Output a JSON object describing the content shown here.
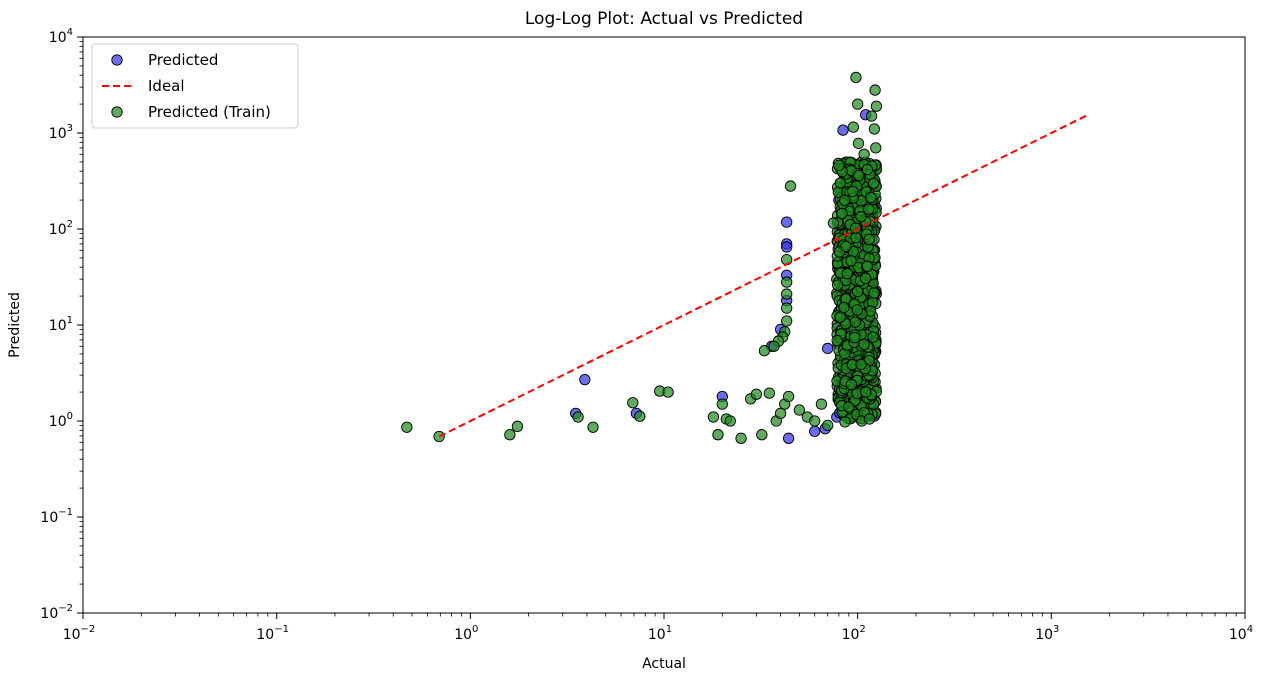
{
  "chart_data": {
    "type": "scatter",
    "title": "Log-Log Plot: Actual vs Predicted",
    "xlabel": "Actual",
    "ylabel": "Predicted",
    "xscale": "log",
    "yscale": "log",
    "xlim": [
      0.01,
      10000
    ],
    "ylim": [
      0.01,
      10000
    ],
    "xticks": [
      {
        "base": "10",
        "exp": "−2",
        "value": 0.01
      },
      {
        "base": "10",
        "exp": "−1",
        "value": 0.1
      },
      {
        "base": "10",
        "exp": "0",
        "value": 1
      },
      {
        "base": "10",
        "exp": "1",
        "value": 10
      },
      {
        "base": "10",
        "exp": "2",
        "value": 100
      },
      {
        "base": "10",
        "exp": "3",
        "value": 1000
      },
      {
        "base": "10",
        "exp": "4",
        "value": 10000
      }
    ],
    "yticks": [
      {
        "base": "10",
        "exp": "−2",
        "value": 0.01
      },
      {
        "base": "10",
        "exp": "−1",
        "value": 0.1
      },
      {
        "base": "10",
        "exp": "0",
        "value": 1
      },
      {
        "base": "10",
        "exp": "1",
        "value": 10
      },
      {
        "base": "10",
        "exp": "2",
        "value": 100
      },
      {
        "base": "10",
        "exp": "3",
        "value": 1000
      },
      {
        "base": "10",
        "exp": "4",
        "value": 10000
      }
    ],
    "grid": false,
    "legend_position": "top-left",
    "series": [
      {
        "name": "Predicted",
        "kind": "scatter",
        "color": "#3333e6",
        "points": [
          [
            3.9,
            2.7
          ],
          [
            3.5,
            1.2
          ],
          [
            7.2,
            1.2
          ],
          [
            20,
            1.8
          ],
          [
            43,
            118
          ],
          [
            43,
            70
          ],
          [
            43,
            65
          ],
          [
            43,
            33
          ],
          [
            43,
            18
          ],
          [
            40,
            9
          ],
          [
            36,
            6
          ],
          [
            70,
            5.7
          ],
          [
            84,
            1070
          ],
          [
            110,
            1550
          ],
          [
            44,
            0.66
          ],
          [
            60,
            0.78
          ],
          [
            68,
            0.83
          ],
          [
            120,
            1.7
          ],
          [
            85,
            12
          ],
          [
            90,
            25
          ],
          [
            95,
            40
          ],
          [
            100,
            8
          ],
          [
            105,
            3.5
          ],
          [
            88,
            1.6
          ],
          [
            115,
            60
          ],
          [
            80,
            200
          ],
          [
            92,
            330
          ],
          [
            78,
            1.1
          ]
        ]
      },
      {
        "name": "Ideal",
        "kind": "line",
        "color": "#ff0000",
        "points": [
          [
            0.69,
            0.69
          ],
          [
            1545,
            1545
          ]
        ]
      },
      {
        "name": "Predicted (Train)",
        "kind": "scatter",
        "color": "#228b22",
        "points": [
          [
            0.47,
            0.86
          ],
          [
            0.69,
            0.69
          ],
          [
            1.6,
            0.72
          ],
          [
            1.75,
            0.88
          ],
          [
            3.6,
            1.1
          ],
          [
            4.3,
            0.86
          ],
          [
            6.9,
            1.55
          ],
          [
            7.5,
            1.12
          ],
          [
            9.5,
            2.05
          ],
          [
            10.5,
            2.0
          ],
          [
            18,
            1.1
          ],
          [
            19,
            0.72
          ],
          [
            20,
            1.5
          ],
          [
            21,
            1.05
          ],
          [
            22,
            1.0
          ],
          [
            25,
            0.66
          ],
          [
            28,
            1.7
          ],
          [
            30,
            1.9
          ],
          [
            32,
            0.72
          ],
          [
            33,
            5.4
          ],
          [
            35,
            1.95
          ],
          [
            38,
            1.0
          ],
          [
            40,
            1.2
          ],
          [
            42,
            1.5
          ],
          [
            44,
            1.8
          ],
          [
            45,
            280
          ],
          [
            43,
            48
          ],
          [
            43,
            28
          ],
          [
            43,
            21
          ],
          [
            43,
            15
          ],
          [
            43,
            11
          ],
          [
            42,
            8.5
          ],
          [
            41,
            7.5
          ],
          [
            39,
            6.8
          ],
          [
            37,
            6.0
          ],
          [
            50,
            1.3
          ],
          [
            55,
            1.1
          ],
          [
            60,
            1.0
          ],
          [
            65,
            1.5
          ],
          [
            70,
            0.9
          ],
          [
            75,
            115
          ],
          [
            98,
            3800
          ],
          [
            123,
            2800
          ],
          [
            125,
            1900
          ],
          [
            100,
            2000
          ],
          [
            118,
            1500
          ],
          [
            95,
            1150
          ],
          [
            101,
            780
          ],
          [
            108,
            600
          ],
          [
            80,
            460
          ],
          [
            122,
            1100
          ],
          [
            124,
            700
          ],
          [
            121,
            300
          ],
          [
            86,
            0.98
          ],
          [
            105,
            1.0
          ],
          [
            115,
            1.05
          ],
          [
            90,
            1.4
          ],
          [
            110,
            2.0
          ]
        ]
      }
    ],
    "column_clusters": [
      {
        "series": "Predicted (Train)",
        "x_min": 78,
        "x_max": 125,
        "y_min": 1.05,
        "y_max": 500,
        "count": 950
      },
      {
        "series": "Predicted",
        "x_min": 80,
        "x_max": 122,
        "y_min": 1.1,
        "y_max": 350,
        "count": 80
      }
    ],
    "colors": {
      "predicted": "#3333e6",
      "ideal": "#ff0000",
      "train": "#228b22",
      "marker_edge": "#000000"
    }
  }
}
